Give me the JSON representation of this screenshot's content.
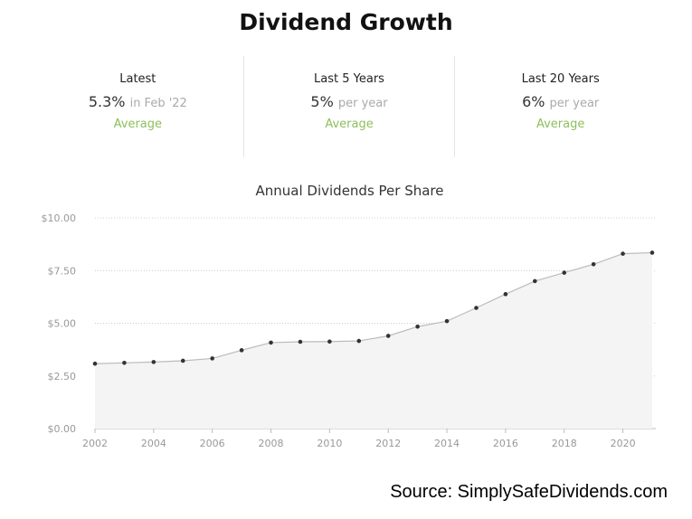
{
  "title": "Dividend Growth",
  "stats": [
    {
      "label": "Latest",
      "value": "5.3%",
      "suffix": "in Feb '22",
      "avg": "Average"
    },
    {
      "label": "Last 5 Years",
      "value": "5%",
      "suffix": "per year",
      "avg": "Average"
    },
    {
      "label": "Last 20 Years",
      "value": "6%",
      "suffix": "per year",
      "avg": "Average"
    }
  ],
  "source": "Source: SimplySafeDividends.com",
  "colors": {
    "accent_green": "#8cbf5a",
    "point": "#333333",
    "line": "#bbbbbb",
    "fill": "#f4f4f4",
    "grid": "#cccccc"
  },
  "chart_data": {
    "type": "area",
    "title": "Annual Dividends Per Share",
    "xlabel": "",
    "ylabel": "",
    "xlim": [
      2002,
      2021
    ],
    "ylim": [
      0,
      10
    ],
    "yticks": [
      0,
      2.5,
      5,
      7.5,
      10
    ],
    "ytick_labels": [
      "$0.00",
      "$2.50",
      "$5.00",
      "$7.50",
      "$10.00"
    ],
    "xticks": [
      2002,
      2004,
      2006,
      2008,
      2010,
      2012,
      2014,
      2016,
      2018,
      2020
    ],
    "xtick_labels": [
      "2002",
      "2004",
      "2006",
      "2008",
      "2010",
      "2012",
      "2014",
      "2016",
      "2018",
      "2020"
    ],
    "grid": true,
    "series": [
      {
        "x": [
          2002,
          2003,
          2004,
          2005,
          2006,
          2007,
          2008,
          2009,
          2010,
          2011,
          2012,
          2013,
          2014,
          2015,
          2016,
          2017,
          2018,
          2019,
          2020,
          2021
        ],
        "values": [
          3.08,
          3.12,
          3.16,
          3.22,
          3.33,
          3.72,
          4.08,
          4.12,
          4.13,
          4.16,
          4.4,
          4.84,
          5.1,
          5.73,
          6.38,
          7.0,
          7.4,
          7.8,
          8.3,
          8.35
        ]
      }
    ]
  }
}
